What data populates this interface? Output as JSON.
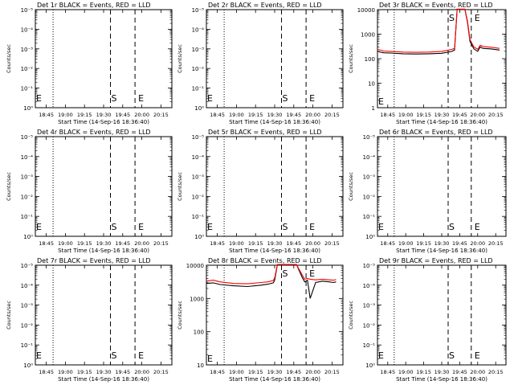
{
  "chart_data": [
    {
      "type": "line",
      "title": "Det 1r BLACK = Events, RED = LLD",
      "xlabel": "Start Time (14-Sep-16 18:36:40)",
      "ylabel": "Counts/sec",
      "xticks": [
        "18:45",
        "19:00",
        "19:15",
        "19:30",
        "19:45",
        "20:00",
        "20:15"
      ],
      "yticks": [
        "10⁰",
        "10⁻¹",
        "10⁻²",
        "10⁻³",
        "10⁻⁴",
        "10⁻⁵"
      ],
      "markers": [
        "E",
        "S",
        "E"
      ],
      "series": []
    },
    {
      "type": "line",
      "title": "Det 2r BLACK = Events, RED = LLD",
      "xlabel": "Start Time (14-Sep-16 18:36:40)",
      "ylabel": "Counts/sec",
      "xticks": [
        "18:45",
        "19:00",
        "19:15",
        "19:30",
        "19:45",
        "20:00",
        "20:15"
      ],
      "yticks": [
        "10⁰",
        "10⁻¹",
        "10⁻²",
        "10⁻³",
        "10⁻⁴",
        "10⁻⁵"
      ],
      "markers": [
        "E",
        "S",
        "E"
      ],
      "series": []
    },
    {
      "type": "line",
      "title": "Det 3r BLACK = Events, RED = LLD",
      "xlabel": "Start Time (14-Sep-16 18:36:40)",
      "ylabel": "Counts/sec",
      "xticks": [
        "18:45",
        "19:00",
        "19:15",
        "19:30",
        "19:45",
        "20:00",
        "20:15"
      ],
      "yticks": [
        "1",
        "10",
        "100",
        "1000",
        "10000"
      ],
      "markers": [
        "E",
        "S",
        "E"
      ],
      "series": [
        {
          "color": "#000000",
          "x": [
            0.0,
            0.03,
            0.05,
            0.1,
            0.2,
            0.3,
            0.4,
            0.5,
            0.58,
            0.6,
            0.62,
            0.645,
            0.665,
            0.68,
            0.7,
            0.72,
            0.75,
            0.78,
            0.8,
            0.82,
            0.88,
            0.95
          ],
          "y": [
            2.3,
            2.26,
            2.24,
            2.23,
            2.2,
            2.19,
            2.2,
            2.22,
            2.3,
            2.35,
            4.35,
            4.55,
            4.2,
            4.1,
            3.5,
            2.7,
            2.4,
            2.3,
            2.48,
            2.42,
            2.4,
            2.35
          ]
        },
        {
          "color": "#ff0000",
          "x": [
            0.0,
            0.03,
            0.05,
            0.1,
            0.2,
            0.3,
            0.4,
            0.5,
            0.58,
            0.6,
            0.62,
            0.645,
            0.665,
            0.68,
            0.7,
            0.72,
            0.75,
            0.78,
            0.8,
            0.82,
            0.88,
            0.95
          ],
          "y": [
            2.38,
            2.34,
            2.31,
            2.3,
            2.27,
            2.26,
            2.27,
            2.3,
            2.38,
            2.42,
            4.4,
            4.6,
            4.25,
            4.15,
            3.55,
            2.78,
            2.48,
            2.38,
            2.55,
            2.5,
            2.47,
            2.42
          ]
        }
      ]
    },
    {
      "type": "line",
      "title": "Det 4r BLACK = Events, RED = LLD",
      "xlabel": "Start Time (14-Sep-16 18:36:40)",
      "ylabel": "Counts/sec",
      "xticks": [
        "18:45",
        "19:00",
        "19:15",
        "19:30",
        "19:45",
        "20:00",
        "20:15"
      ],
      "yticks": [
        "10⁰",
        "10⁻¹",
        "10⁻²",
        "10⁻³",
        "10⁻⁴",
        "10⁻⁵"
      ],
      "markers": [
        "E",
        "S",
        "E"
      ],
      "series": []
    },
    {
      "type": "line",
      "title": "Det 5r BLACK = Events, RED = LLD",
      "xlabel": "Start Time (14-Sep-16 18:36:40)",
      "ylabel": "Counts/sec",
      "xticks": [
        "18:45",
        "19:00",
        "19:15",
        "19:30",
        "19:45",
        "20:00",
        "20:15"
      ],
      "yticks": [
        "10⁰",
        "10⁻¹",
        "10⁻²",
        "10⁻³",
        "10⁻⁴",
        "10⁻⁵"
      ],
      "markers": [
        "E",
        "S",
        "E"
      ],
      "series": []
    },
    {
      "type": "line",
      "title": "Det 6r BLACK = Events, RED = LLD",
      "xlabel": "Start Time (14-Sep-16 18:36:40)",
      "ylabel": "Counts/sec",
      "xticks": [
        "18:45",
        "19:00",
        "19:15",
        "19:30",
        "19:45",
        "20:00",
        "20:15"
      ],
      "yticks": [
        "10⁰",
        "10⁻¹",
        "10⁻²",
        "10⁻³",
        "10⁻⁴",
        "10⁻⁵"
      ],
      "markers": [
        "E",
        "S",
        "E"
      ],
      "series": []
    },
    {
      "type": "line",
      "title": "Det 7r BLACK = Events, RED = LLD",
      "xlabel": "Start Time (14-Sep-16 18:36:40)",
      "ylabel": "Counts/sec",
      "xticks": [
        "18:45",
        "19:00",
        "19:15",
        "19:30",
        "19:45",
        "20:00",
        "20:15"
      ],
      "yticks": [
        "10⁰",
        "10⁻¹",
        "10⁻²",
        "10⁻³",
        "10⁻⁴",
        "10⁻⁵"
      ],
      "markers": [
        "E",
        "S",
        "E"
      ],
      "series": []
    },
    {
      "type": "line",
      "title": "Det 8r BLACK = Events, RED = LLD",
      "xlabel": "Start Time (14-Sep-16 18:36:40)",
      "ylabel": "Counts/sec",
      "xticks": [
        "18:45",
        "19:00",
        "19:15",
        "19:30",
        "19:45",
        "20:00",
        "20:15"
      ],
      "yticks": [
        "10",
        "100",
        "1000",
        "10000"
      ],
      "markers": [
        "E",
        "S",
        "E"
      ],
      "series": [
        {
          "color": "#000000",
          "x": [
            0.0,
            0.05,
            0.1,
            0.2,
            0.3,
            0.4,
            0.45,
            0.49,
            0.5,
            0.52,
            0.6,
            0.65,
            0.66,
            0.7,
            0.72,
            0.74,
            0.76,
            0.8,
            0.85,
            0.9,
            0.93,
            0.95
          ],
          "y": [
            2.45,
            2.47,
            2.42,
            2.38,
            2.36,
            2.4,
            2.43,
            2.47,
            2.55,
            3.8,
            3.85,
            3.82,
            3.2,
            2.65,
            2.5,
            2.55,
            2.0,
            2.48,
            2.52,
            2.5,
            2.48,
            2.5
          ]
        },
        {
          "color": "#ff0000",
          "x": [
            0.0,
            0.05,
            0.1,
            0.2,
            0.3,
            0.4,
            0.45,
            0.49,
            0.5,
            0.52,
            0.6,
            0.65,
            0.66,
            0.7,
            0.72,
            0.74,
            0.76,
            0.8,
            0.85,
            0.9,
            0.93,
            0.95
          ],
          "y": [
            2.52,
            2.55,
            2.5,
            2.45,
            2.44,
            2.48,
            2.5,
            2.54,
            2.62,
            3.95,
            4.0,
            3.95,
            3.3,
            2.72,
            2.58,
            2.6,
            2.58,
            2.56,
            2.58,
            2.56,
            2.55,
            2.57
          ]
        }
      ]
    },
    {
      "type": "line",
      "title": "Det 9r BLACK = Events, RED = LLD",
      "xlabel": "Start Time (14-Sep-16 18:36:40)",
      "ylabel": "Counts/sec",
      "xticks": [
        "18:45",
        "19:00",
        "19:15",
        "19:30",
        "19:45",
        "20:00",
        "20:15"
      ],
      "yticks": [
        "10⁰",
        "10⁻¹",
        "10⁻²",
        "10⁻³",
        "10⁻⁴",
        "10⁻⁵"
      ],
      "markers": [
        "E",
        "S",
        "E"
      ],
      "series": []
    }
  ]
}
